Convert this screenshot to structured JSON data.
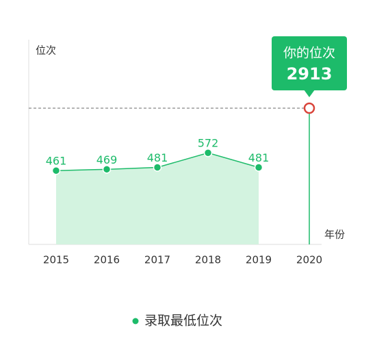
{
  "chart_data": {
    "type": "area",
    "y_label": "位次",
    "x_label": "年份",
    "categories": [
      "2015",
      "2016",
      "2017",
      "2018",
      "2019",
      "2020"
    ],
    "series": [
      {
        "name": "录取最低位次",
        "color": "#1dbb6a",
        "fill": "#d3f3e0",
        "values": [
          461,
          469,
          481,
          572,
          481,
          null
        ]
      }
    ],
    "ylim": [
      0,
      1270
    ],
    "annotation": {
      "title": "你的位次",
      "value": 2913,
      "color": "#1dbb6a",
      "marker_color": "#d9443a"
    }
  }
}
